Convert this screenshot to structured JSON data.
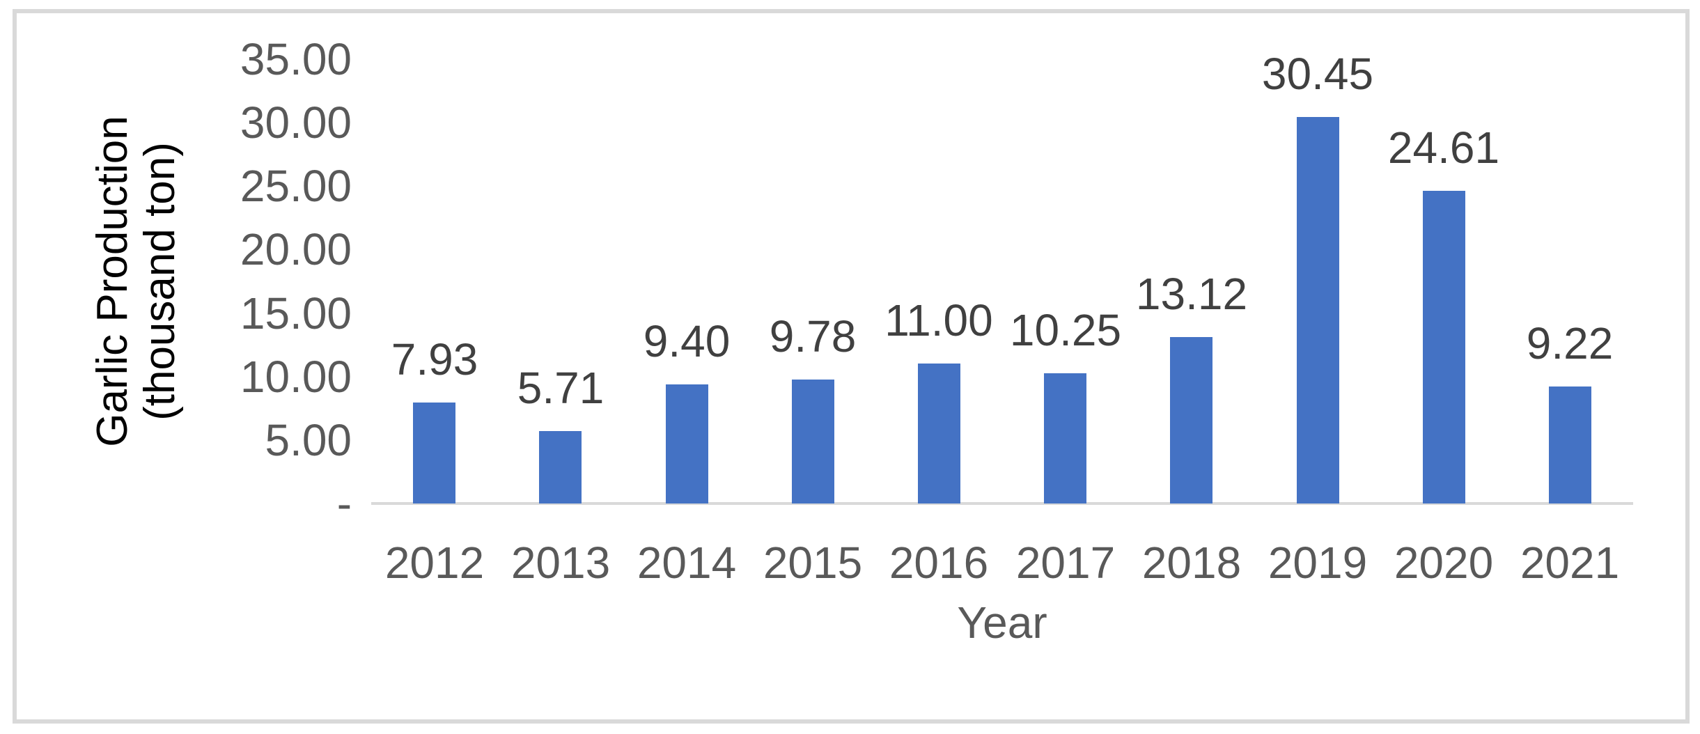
{
  "chart_data": {
    "type": "bar",
    "title": "",
    "categories": [
      "2012",
      "2013",
      "2014",
      "2015",
      "2016",
      "2017",
      "2018",
      "2019",
      "2020",
      "2021"
    ],
    "values": [
      7.93,
      5.71,
      9.4,
      9.78,
      11.0,
      10.25,
      13.12,
      30.45,
      24.61,
      9.22
    ],
    "value_labels": [
      "7.93",
      "5.71",
      "9.40",
      "9.78",
      "11.00",
      "10.25",
      "13.12",
      "30.45",
      "24.61",
      "9.22"
    ],
    "xlabel": "Year",
    "ylabel": "Garlic Production (thousand ton)",
    "ylabel_lines": [
      "Garlic Production",
      "(thousand ton)"
    ],
    "ylim": [
      0,
      35
    ],
    "y_tick_interval": 5,
    "y_ticks": [
      {
        "label": "35.00",
        "value": 35
      },
      {
        "label": "30.00",
        "value": 30
      },
      {
        "label": "25.00",
        "value": 25
      },
      {
        "label": "20.00",
        "value": 20
      },
      {
        "label": "15.00",
        "value": 15
      },
      {
        "label": "10.00",
        "value": 10
      },
      {
        "label": "5.00",
        "value": 5
      },
      {
        "label": "-",
        "value": 0
      }
    ],
    "legend": "none",
    "grid": "off",
    "data_label_position": "outside-end",
    "colors": {
      "bar": "#4472C4",
      "axis_line": "#D9D9D9",
      "frame_border": "#D9D9D9",
      "tick_label": "#595959",
      "category_label": "#595959",
      "data_label": "#404040",
      "x_axis_title": "#595959",
      "y_axis_title": "#000000",
      "background": "#FFFFFF"
    }
  }
}
